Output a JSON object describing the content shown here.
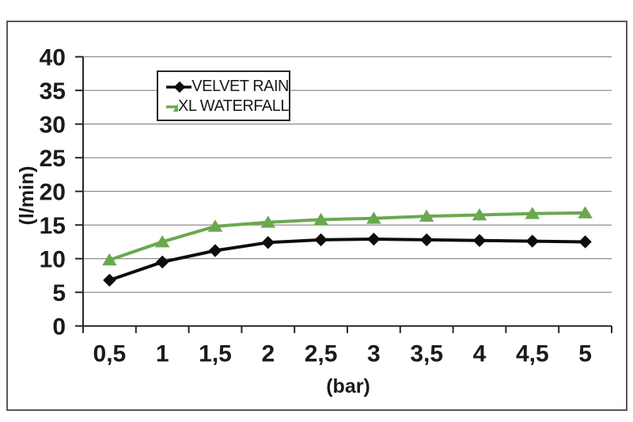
{
  "chart_data": {
    "type": "line",
    "title": "",
    "xlabel": "(bar)",
    "ylabel": "(l/min)",
    "categories": [
      "0,5",
      "1",
      "1,5",
      "2",
      "2,5",
      "3",
      "3,5",
      "4",
      "4,5",
      "5"
    ],
    "x_values": [
      0.5,
      1,
      1.5,
      2,
      2.5,
      3,
      3.5,
      4,
      4.5,
      5
    ],
    "series": [
      {
        "name": "VELVET RAIN",
        "marker": "diamond",
        "color": "#0d0d0d",
        "values": [
          6.8,
          9.5,
          11.2,
          12.4,
          12.8,
          12.9,
          12.8,
          12.7,
          12.6,
          12.5
        ]
      },
      {
        "name": "XL WATERFALL",
        "marker": "triangle",
        "color": "#6aa84f",
        "values": [
          9.8,
          12.5,
          14.8,
          15.4,
          15.8,
          16.0,
          16.3,
          16.5,
          16.7,
          16.8
        ]
      }
    ],
    "ylim": [
      0,
      40
    ],
    "yticks": [
      0,
      5,
      10,
      15,
      20,
      25,
      30,
      35,
      40
    ],
    "grid": true,
    "legend_position": "inside-top-left"
  },
  "colors": {
    "background": "#ffffff",
    "frame_border": "#595959",
    "axis": "#262626",
    "grid": "#808080",
    "tick_text": "#1a1a1a",
    "legend_border": "#262626"
  }
}
